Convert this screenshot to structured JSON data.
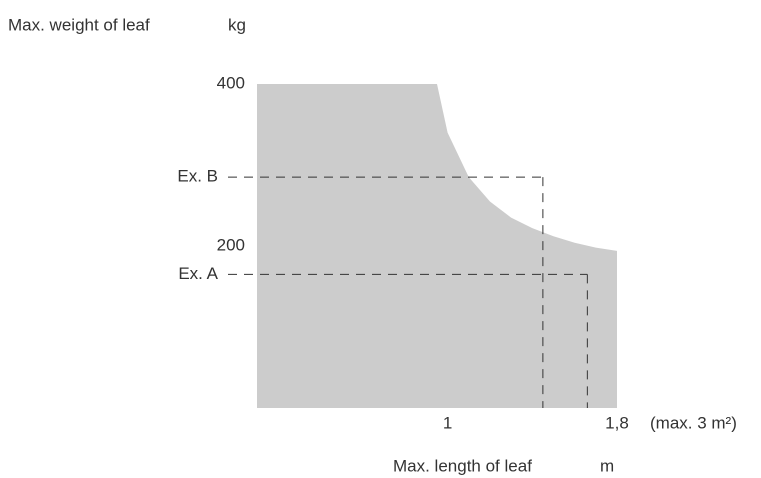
{
  "chart_data": {
    "type": "area",
    "y_label": "Max. weight of leaf",
    "y_unit": "kg",
    "x_label": "Max. length of leaf",
    "x_unit": "m",
    "note": "(max. 3 m²)",
    "x": [
      0.1,
      0.95,
      1.0,
      1.1,
      1.2,
      1.3,
      1.4,
      1.5,
      1.6,
      1.7,
      1.8
    ],
    "values": [
      400,
      400,
      340,
      285,
      255,
      235,
      222,
      212,
      204,
      198,
      194
    ],
    "color": "#cccccc",
    "xlim": [
      0.1,
      1.8
    ],
    "xticks": [
      1,
      {
        "value": 1.8,
        "label": "1,8"
      }
    ],
    "ylim": [
      0,
      400
    ],
    "yticks": [
      400,
      200
    ],
    "examples": [
      {
        "label": "Ex. B",
        "length": 1.45,
        "weight": 285
      },
      {
        "label": "Ex. A",
        "length": 1.66,
        "weight": 165
      }
    ]
  }
}
